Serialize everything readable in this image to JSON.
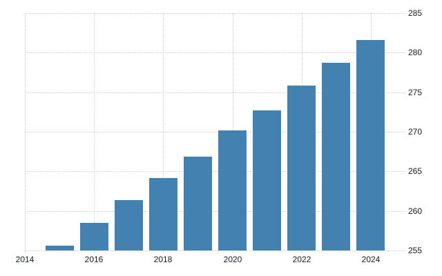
{
  "chart_data": {
    "type": "bar",
    "title": "",
    "xlabel": "",
    "ylabel": "",
    "categories": [
      2015,
      2016,
      2017,
      2018,
      2019,
      2020,
      2021,
      2022,
      2023,
      2024
    ],
    "values": [
      255.6,
      258.5,
      261.4,
      264.2,
      266.9,
      270.2,
      272.7,
      275.8,
      278.7,
      281.6
    ],
    "xlim": [
      2014,
      2025
    ],
    "ylim": [
      255,
      285
    ],
    "yticks": [
      285,
      280,
      275,
      270,
      265,
      260,
      255
    ],
    "xticks": [
      2014,
      2016,
      2018,
      2020,
      2022,
      2024
    ],
    "y_axis_side": "right",
    "grid": "dotted",
    "legend": "none",
    "colors": {
      "bar": "#4381b1",
      "grid": "#cccccc",
      "label": "#15191e",
      "background": "#ffffff"
    }
  }
}
